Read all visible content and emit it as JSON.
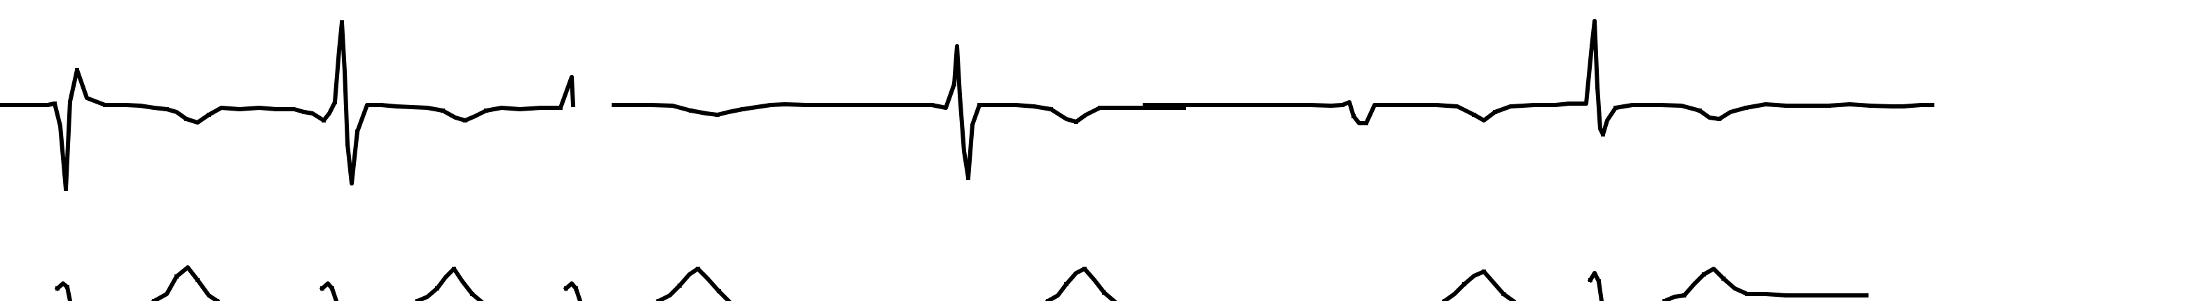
{
  "chart_data": {
    "type": "line",
    "title": "",
    "xlabel": "",
    "ylabel": "",
    "grid": false,
    "legend": "none",
    "trace_color": "#000000",
    "background_color": "#ffffff",
    "lead_1": {
      "segments": [
        [
          [
            0,
            0
          ],
          [
            40,
            0
          ],
          [
            56,
            0
          ],
          [
            68,
            0
          ],
          [
            78,
            -2
          ],
          [
            86,
            30
          ],
          [
            94,
            120
          ],
          [
            100,
            -5
          ],
          [
            110,
            -50
          ],
          [
            124,
            -10
          ],
          [
            150,
            0
          ],
          [
            180,
            0
          ],
          [
            200,
            1
          ],
          [
            220,
            4
          ],
          [
            238,
            6
          ],
          [
            252,
            10
          ],
          [
            266,
            20
          ],
          [
            282,
            25
          ],
          [
            298,
            14
          ],
          [
            316,
            4
          ],
          [
            342,
            6
          ],
          [
            370,
            4
          ],
          [
            394,
            6
          ],
          [
            420,
            6
          ],
          [
            434,
            10
          ],
          [
            446,
            12
          ],
          [
            462,
            22
          ],
          [
            470,
            12
          ],
          [
            478,
            -4
          ],
          [
            484,
            -78
          ],
          [
            488,
            -118
          ],
          [
            492,
            -48
          ],
          [
            496,
            56
          ],
          [
            502,
            112
          ],
          [
            510,
            38
          ],
          [
            524,
            0
          ],
          [
            544,
            0
          ],
          [
            566,
            2
          ],
          [
            588,
            3
          ],
          [
            610,
            4
          ],
          [
            632,
            8
          ],
          [
            650,
            18
          ],
          [
            664,
            22
          ],
          [
            678,
            16
          ],
          [
            694,
            8
          ],
          [
            716,
            4
          ],
          [
            742,
            6
          ],
          [
            772,
            4
          ],
          [
            800,
            4
          ],
          [
            816,
            -40
          ],
          [
            818,
            0
          ]
        ],
        [
          [
            876,
            0
          ],
          [
            900,
            0
          ],
          [
            930,
            0
          ],
          [
            960,
            1
          ],
          [
            986,
            8
          ],
          [
            1008,
            12
          ],
          [
            1024,
            14
          ],
          [
            1040,
            10
          ],
          [
            1060,
            6
          ],
          [
            1080,
            3
          ],
          [
            1100,
            0
          ],
          [
            1120,
            -1
          ],
          [
            1150,
            0
          ],
          [
            1180,
            0
          ],
          [
            1210,
            0
          ],
          [
            1240,
            0
          ],
          [
            1270,
            0
          ],
          [
            1300,
            0
          ],
          [
            1330,
            0
          ],
          [
            1350,
            4
          ],
          [
            1362,
            -30
          ],
          [
            1366,
            -84
          ],
          [
            1370,
            -14
          ],
          [
            1376,
            66
          ],
          [
            1382,
            104
          ],
          [
            1388,
            28
          ],
          [
            1398,
            0
          ],
          [
            1424,
            0
          ],
          [
            1450,
            0
          ],
          [
            1476,
            2
          ],
          [
            1500,
            6
          ],
          [
            1522,
            20
          ],
          [
            1536,
            24
          ],
          [
            1550,
            14
          ],
          [
            1570,
            4
          ],
          [
            1600,
            4
          ],
          [
            1630,
            4
          ],
          [
            1660,
            4
          ],
          [
            1690,
            4
          ]
        ],
        [
          [
            1634,
            0
          ],
          [
            1660,
            0
          ],
          [
            1690,
            0
          ],
          [
            1720,
            0
          ],
          [
            1750,
            0
          ],
          [
            1780,
            0
          ],
          [
            1810,
            0
          ],
          [
            1840,
            0
          ],
          [
            1870,
            0
          ],
          [
            1900,
            1
          ],
          [
            1916,
            0
          ],
          [
            1926,
            -4
          ],
          [
            1932,
            16
          ],
          [
            1940,
            26
          ],
          [
            1950,
            26
          ],
          [
            1962,
            0
          ],
          [
            1990,
            0
          ],
          [
            2020,
            0
          ],
          [
            2050,
            0
          ],
          [
            2080,
            2
          ],
          [
            2104,
            14
          ],
          [
            2118,
            22
          ],
          [
            2134,
            10
          ],
          [
            2156,
            2
          ],
          [
            2190,
            0
          ],
          [
            2220,
            0
          ],
          [
            2240,
            -2
          ],
          [
            2264,
            -2
          ],
          [
            2272,
            -84
          ],
          [
            2276,
            -120
          ],
          [
            2280,
            -26
          ],
          [
            2284,
            34
          ],
          [
            2288,
            42
          ],
          [
            2294,
            22
          ],
          [
            2306,
            4
          ],
          [
            2330,
            0
          ],
          [
            2370,
            0
          ],
          [
            2400,
            1
          ],
          [
            2426,
            8
          ],
          [
            2440,
            18
          ],
          [
            2454,
            20
          ],
          [
            2470,
            10
          ],
          [
            2492,
            4
          ],
          [
            2520,
            -1
          ],
          [
            2550,
            1
          ],
          [
            2580,
            1
          ],
          [
            2610,
            1
          ],
          [
            2640,
            -1
          ],
          [
            2670,
            1
          ],
          [
            2700,
            2
          ],
          [
            2716,
            2
          ],
          [
            2742,
            0
          ],
          [
            2758,
            0
          ]
        ]
      ]
    },
    "lead_2": {
      "segments": [
        [
          [
            82,
            -18
          ],
          [
            90,
            -25
          ],
          [
            96,
            -20
          ],
          [
            100,
            0
          ]
        ],
        [
          [
            220,
            0
          ],
          [
            238,
            -10
          ],
          [
            252,
            -35
          ],
          [
            268,
            -48
          ],
          [
            282,
            -30
          ],
          [
            298,
            -8
          ],
          [
            310,
            0
          ]
        ],
        [
          [
            460,
            -18
          ],
          [
            468,
            -25
          ],
          [
            474,
            -18
          ],
          [
            480,
            0
          ]
        ],
        [
          [
            596,
            0
          ],
          [
            610,
            -6
          ],
          [
            624,
            -18
          ],
          [
            636,
            -34
          ],
          [
            648,
            -46
          ],
          [
            660,
            -28
          ],
          [
            674,
            -10
          ],
          [
            686,
            0
          ]
        ],
        [
          [
            808,
            -18
          ],
          [
            816,
            -25
          ],
          [
            822,
            -18
          ],
          [
            828,
            0
          ]
        ],
        [
          [
            940,
            0
          ],
          [
            956,
            -8
          ],
          [
            970,
            -22
          ],
          [
            984,
            -38
          ],
          [
            996,
            -46
          ],
          [
            1010,
            -32
          ],
          [
            1026,
            -14
          ],
          [
            1040,
            0
          ]
        ],
        [
          [
            1496,
            0
          ],
          [
            1510,
            -8
          ],
          [
            1522,
            -24
          ],
          [
            1536,
            -40
          ],
          [
            1548,
            -46
          ],
          [
            1562,
            -30
          ],
          [
            1576,
            -12
          ],
          [
            1590,
            0
          ]
        ],
        [
          [
            2062,
            0
          ],
          [
            2076,
            -10
          ],
          [
            2090,
            -24
          ],
          [
            2104,
            -36
          ],
          [
            2118,
            -42
          ],
          [
            2132,
            -26
          ],
          [
            2146,
            -10
          ],
          [
            2160,
            0
          ]
        ],
        [
          [
            2270,
            -30
          ],
          [
            2276,
            -40
          ],
          [
            2282,
            -28
          ],
          [
            2286,
            0
          ]
        ],
        [
          [
            2376,
            0
          ],
          [
            2390,
            -6
          ],
          [
            2404,
            -8
          ],
          [
            2418,
            -24
          ],
          [
            2432,
            -38
          ],
          [
            2446,
            -46
          ],
          [
            2460,
            -32
          ],
          [
            2476,
            -18
          ],
          [
            2494,
            -10
          ],
          [
            2520,
            -10
          ],
          [
            2550,
            -8
          ],
          [
            2580,
            -8
          ],
          [
            2610,
            -8
          ],
          [
            2640,
            -8
          ],
          [
            2664,
            -8
          ]
        ]
      ]
    }
  }
}
